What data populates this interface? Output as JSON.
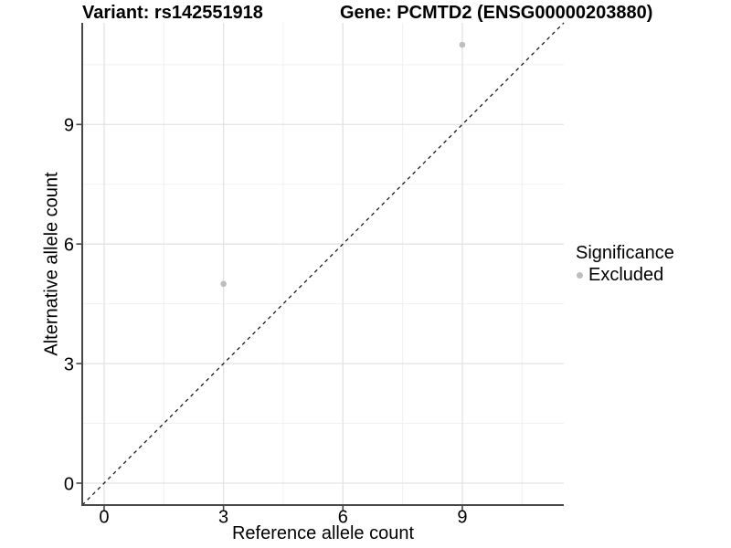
{
  "chart_data": {
    "type": "scatter",
    "title_variant": "Variant: rs142551918",
    "title_gene": "Gene: PCMTD2 (ENSG00000203880)",
    "xlabel": "Reference allele count",
    "ylabel": "Alternative allele count",
    "xlim": [
      -0.55,
      11.55
    ],
    "ylim": [
      -0.55,
      11.55
    ],
    "x_major_ticks": [
      0,
      3,
      6,
      9
    ],
    "x_minor_ticks": [
      1.5,
      4.5,
      7.5,
      10.5
    ],
    "y_major_ticks": [
      0,
      3,
      6,
      9
    ],
    "y_minor_ticks": [
      1.5,
      4.5,
      7.5,
      10.5
    ],
    "series": [
      {
        "name": "Excluded",
        "color": "#bdbdbd",
        "points": [
          {
            "x": 3,
            "y": 5
          },
          {
            "x": 9,
            "y": 11
          }
        ]
      }
    ],
    "identity_line": {
      "style": "dashed",
      "slope": 1,
      "intercept": 0
    },
    "grid": "major+minor",
    "legend": {
      "title": "Significance",
      "position": "right",
      "items": [
        {
          "label": "Excluded",
          "color": "#bdbdbd"
        }
      ]
    },
    "colors": {
      "background": "#ffffff",
      "grid_major": "#e3e3e3",
      "grid_minor": "#f1f1f1",
      "axis": "#474747",
      "tick_text": "#000000",
      "identity_line": "#1a1a1a"
    }
  }
}
